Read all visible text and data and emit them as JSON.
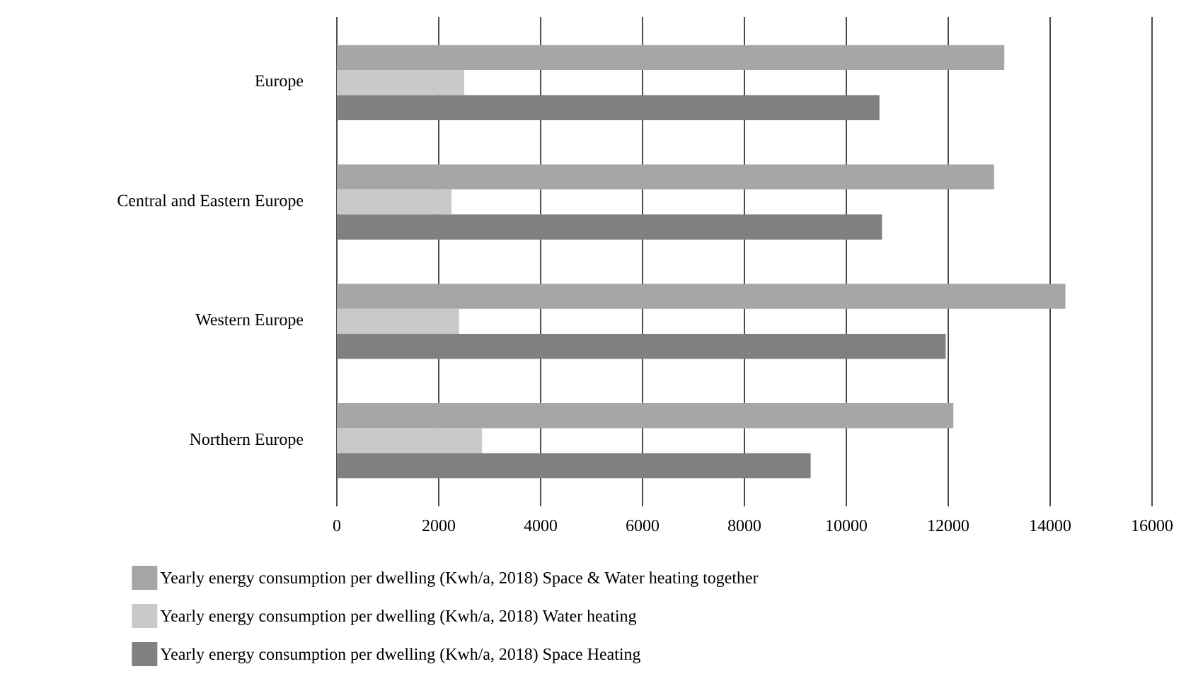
{
  "chart_data": {
    "type": "bar",
    "orientation": "horizontal",
    "categories": [
      "Europe",
      "Central and Eastern Europe",
      "Western Europe",
      "Northern Europe"
    ],
    "series": [
      {
        "name": "Yearly energy consumption per dwelling (Kwh/a, 2018)  Space & Water heating together",
        "color": "#a6a6a6",
        "values": [
          13100,
          12900,
          14300,
          12100
        ]
      },
      {
        "name": "Yearly energy consumption per dwelling (Kwh/a, 2018)  Water heating",
        "color": "#c9c9c9",
        "values": [
          2500,
          2250,
          2400,
          2850
        ]
      },
      {
        "name": "Yearly energy consumption per dwelling (Kwh/a, 2018)  Space Heating",
        "color": "#808080",
        "values": [
          10650,
          10700,
          11950,
          9300
        ]
      }
    ],
    "xlim": [
      0,
      16000
    ],
    "xticks": [
      0,
      2000,
      4000,
      6000,
      8000,
      10000,
      12000,
      14000,
      16000
    ],
    "grid": "x",
    "legend": "bottom"
  }
}
